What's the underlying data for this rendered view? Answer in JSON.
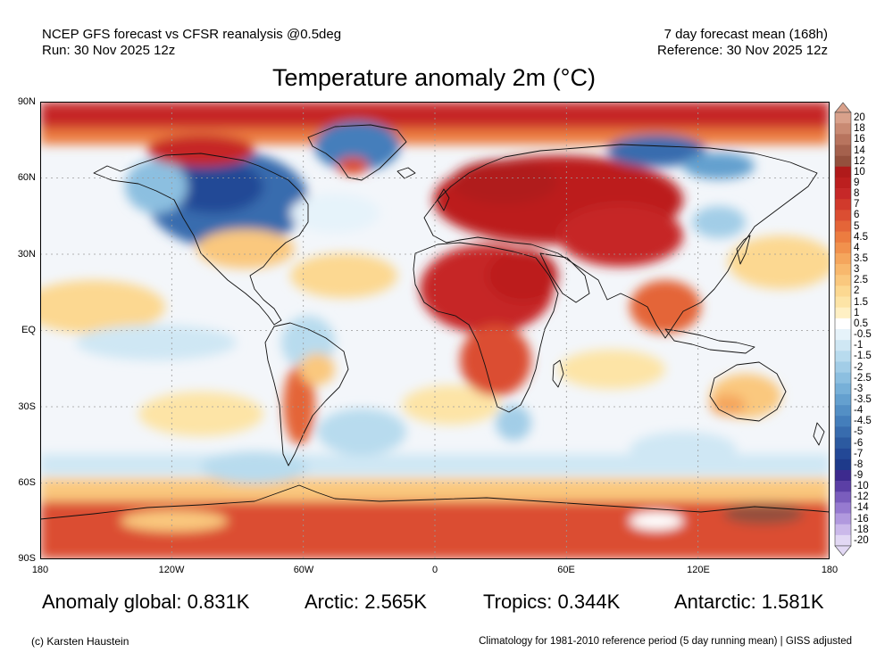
{
  "header": {
    "line1_left": "NCEP GFS forecast vs CFSR reanalysis @0.5deg",
    "line2_left": "Run: 30 Nov 2025 12z",
    "line1_right": "7 day forecast mean (168h)",
    "line2_right": "Reference: 30 Nov 2025 12z"
  },
  "title": "Temperature anomaly 2m (°C)",
  "axes": {
    "lat_labels": [
      "90N",
      "60N",
      "30N",
      "EQ",
      "30S",
      "60S",
      "90S"
    ],
    "lon_labels": [
      "180",
      "120W",
      "60W",
      "0",
      "60E",
      "120E",
      "180"
    ]
  },
  "colorbar": {
    "labels": [
      "20",
      "18",
      "16",
      "14",
      "12",
      "10",
      "9",
      "8",
      "7",
      "6",
      "5",
      "4.5",
      "4",
      "3.5",
      "3",
      "2.5",
      "2",
      "1.5",
      "1",
      "0.5",
      "-0.5",
      "-1",
      "-1.5",
      "-2",
      "-2.5",
      "-3",
      "-3.5",
      "-4",
      "-4.5",
      "-5",
      "-6",
      "-7",
      "-8",
      "-9",
      "-10",
      "-12",
      "-14",
      "-16",
      "-18",
      "-20"
    ],
    "colors": [
      "#d9a18b",
      "#c98a73",
      "#b8745e",
      "#a5614d",
      "#94503d",
      "#b01a1a",
      "#bc1f1f",
      "#c62828",
      "#d13a2c",
      "#db4e32",
      "#e46538",
      "#ec7c40",
      "#f1914d",
      "#f5a65d",
      "#f8b86d",
      "#fac87e",
      "#fcd891",
      "#fde4a6",
      "#fff0c4",
      "#ffffff",
      "#e6f3fa",
      "#cfe7f4",
      "#b8dbee",
      "#a2cde7",
      "#8cbfe0",
      "#77b0d8",
      "#64a0cf",
      "#538fc5",
      "#447ebb",
      "#386cae",
      "#2c5aa0",
      "#234896",
      "#1e3a8a",
      "#3d2a8e",
      "#5b3fa5",
      "#7a5dbd",
      "#967ad0",
      "#b199de",
      "#cbb9ea",
      "#e2d8f4"
    ]
  },
  "stats": {
    "global": "Anomaly global: 0.831K",
    "arctic": "Arctic: 2.565K",
    "tropics": "Tropics: 0.344K",
    "antarctic": "Antarctic: 1.581K"
  },
  "footer": {
    "left": "(c) Karsten Haustein",
    "right": "Climatology for 1981-2010 reference period (5 day running mean) | GISS adjusted"
  }
}
